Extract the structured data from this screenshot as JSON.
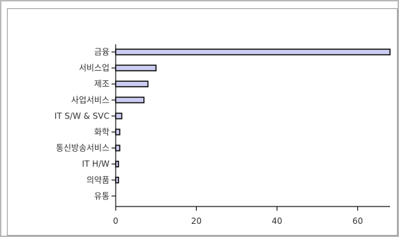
{
  "chart_data": {
    "type": "bar",
    "orientation": "horizontal",
    "categories": [
      "금융",
      "서비스업",
      "제조",
      "사업서비스",
      "IT S/W & SVC",
      "화학",
      "통신방송서비스",
      "IT H/W",
      "의약품",
      "유통"
    ],
    "values": [
      68,
      10,
      8,
      7,
      1.5,
      1,
      1,
      0.7,
      0.7,
      0
    ],
    "xlim": [
      0,
      68
    ],
    "xticks": [
      "0",
      "20",
      "40",
      "60"
    ],
    "xtick_values": [
      0,
      20,
      40,
      60
    ],
    "grid": false,
    "bar_color": "#ccccf2",
    "bar_edge_color": "#111111",
    "title": "",
    "xlabel": "",
    "ylabel": ""
  }
}
